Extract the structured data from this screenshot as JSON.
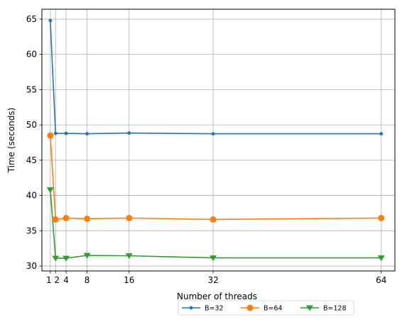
{
  "chart_data": {
    "type": "line",
    "x": [
      1,
      2,
      4,
      8,
      16,
      32,
      64
    ],
    "xticks": [
      1,
      2,
      4,
      8,
      16,
      32,
      64
    ],
    "yticks": [
      30,
      35,
      40,
      45,
      50,
      55,
      60,
      65
    ],
    "xlim": [
      -0.6,
      66.6
    ],
    "ylim": [
      29.3,
      66.4
    ],
    "xlabel": "Number of threads",
    "ylabel": "Time (seconds)",
    "grid": true,
    "legend_placement": "below plot, right of center",
    "series": [
      {
        "name": "B=32",
        "color": "#1f77b4",
        "marker": "dot",
        "values": [
          64.8,
          48.8,
          48.8,
          48.75,
          48.85,
          48.75,
          48.75
        ]
      },
      {
        "name": "B=64",
        "color": "#ff7f0e",
        "marker": "circle",
        "values": [
          48.5,
          36.6,
          36.8,
          36.7,
          36.8,
          36.6,
          36.8
        ]
      },
      {
        "name": "B=128",
        "color": "#2ca02c",
        "marker": "triangle-down",
        "values": [
          40.8,
          31.1,
          31.1,
          31.5,
          31.45,
          31.15,
          31.15
        ]
      }
    ]
  }
}
